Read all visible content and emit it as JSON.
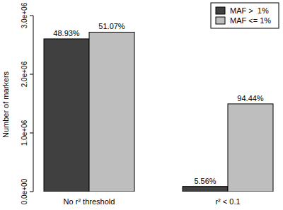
{
  "chart_data": {
    "type": "bar",
    "y_label": "Number of markers",
    "categories": [
      "No r² threshold",
      "r² < 0.1"
    ],
    "series": [
      {
        "name": "MAF >  1%",
        "color": "#404040",
        "values": [
          2603000,
          88000
        ],
        "annotations": [
          "48.93%",
          "5.56%"
        ]
      },
      {
        "name": "MAF <= 1%",
        "color": "#bebebe",
        "values": [
          2717000,
          1495000
        ],
        "annotations": [
          "51.07%",
          "94.44%"
        ]
      }
    ],
    "ylim": [
      0,
      3000000
    ],
    "yticks": [
      {
        "value": 0,
        "label": "0.0e+00"
      },
      {
        "value": 1000000,
        "label": "1.0e+06"
      },
      {
        "value": 2000000,
        "label": "2.0e+06"
      },
      {
        "value": 3000000,
        "label": "3.0e+06"
      }
    ],
    "legend": "top-right"
  }
}
